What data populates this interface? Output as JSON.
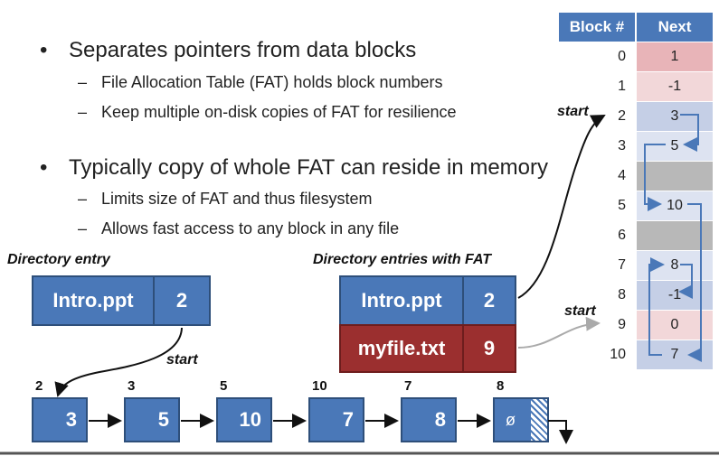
{
  "bullets": [
    {
      "text": "Separates pointers from data blocks",
      "subs": [
        "File Allocation Table (FAT) holds block numbers",
        "Keep multiple on-disk copies of FAT for resilience"
      ]
    },
    {
      "text": "Typically copy of whole FAT can reside in memory",
      "subs": [
        "Limits size of FAT and thus filesystem",
        "Allows fast access to any block in any file"
      ]
    }
  ],
  "fat": {
    "headers": [
      "Block #",
      "Next"
    ],
    "rows": [
      {
        "block": "0",
        "next": "1"
      },
      {
        "block": "1",
        "next": "-1"
      },
      {
        "block": "2",
        "next": "3"
      },
      {
        "block": "3",
        "next": "5"
      },
      {
        "block": "4",
        "next": ""
      },
      {
        "block": "5",
        "next": "10"
      },
      {
        "block": "6",
        "next": ""
      },
      {
        "block": "7",
        "next": "8"
      },
      {
        "block": "8",
        "next": "-1"
      },
      {
        "block": "9",
        "next": "0"
      },
      {
        "block": "10",
        "next": "7"
      }
    ]
  },
  "directory_entry": {
    "caption": "Directory entry",
    "name": "Intro.ppt",
    "start": "2",
    "start_label": "start"
  },
  "fat_directory": {
    "caption": "Directory entries with FAT",
    "entries": [
      {
        "name": "Intro.ppt",
        "start": "2"
      },
      {
        "name": "myfile.txt",
        "start": "9"
      }
    ]
  },
  "start_labels": [
    "start",
    "start"
  ],
  "chain": [
    {
      "block": "2",
      "value": "3"
    },
    {
      "block": "3",
      "value": "5"
    },
    {
      "block": "5",
      "value": "10"
    },
    {
      "block": "10",
      "value": "7"
    },
    {
      "block": "7",
      "value": "8"
    },
    {
      "block": "8",
      "value": "ø"
    }
  ],
  "colors": {
    "blue": "#4a78b8",
    "red": "#9b2f2f",
    "row_pink": "#e8b4b8",
    "row_pink_light": "#f2d7d9",
    "row_blue": "#c5cfe6",
    "row_blue_light": "#dde3f1",
    "row_gray": "#b8b8b8"
  }
}
